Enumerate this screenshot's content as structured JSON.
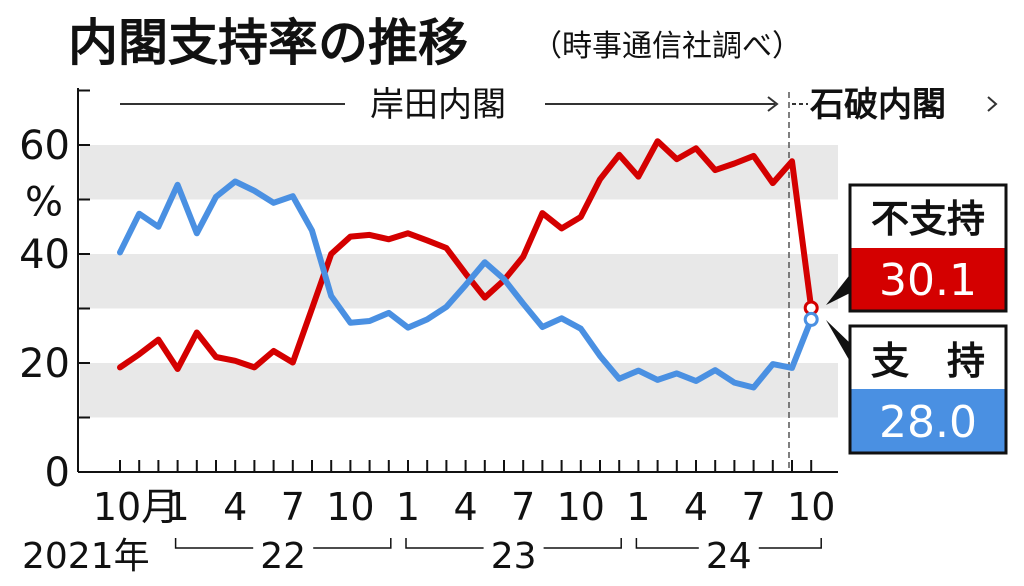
{
  "colors": {
    "disapprove": "#d40000",
    "approve": "#4a90e2",
    "band": "#e8e8e8"
  },
  "title": "内閣支持率の推移",
  "source": "（時事通信社調べ）",
  "eras": {
    "kishida": "岸田内閣",
    "ishiba": "石破内閣"
  },
  "callouts": {
    "disapprove_label": "不支持",
    "disapprove_value": "30.1",
    "approve_label": "支　持",
    "approve_value": "28.0"
  },
  "chart_data": {
    "type": "line",
    "title": "内閣支持率の推移",
    "ylabel": "%",
    "ylim": [
      0,
      70
    ],
    "yticks": [
      "0",
      "20",
      "40",
      "60"
    ],
    "percent_label": "%",
    "x_tick_labels": [
      "10月",
      "1",
      "4",
      "7",
      "10",
      "1",
      "4",
      "7",
      "10",
      "1",
      "4",
      "7",
      "10"
    ],
    "year_labels": [
      "2021年",
      "22",
      "23",
      "24"
    ],
    "x": [
      "2021-10",
      "2021-11",
      "2021-12",
      "2022-01",
      "2022-02",
      "2022-03",
      "2022-04",
      "2022-05",
      "2022-06",
      "2022-07",
      "2022-08",
      "2022-09",
      "2022-10",
      "2022-11",
      "2022-12",
      "2023-01",
      "2023-02",
      "2023-03",
      "2023-04",
      "2023-05",
      "2023-06",
      "2023-07",
      "2023-08",
      "2023-09",
      "2023-10",
      "2023-11",
      "2023-12",
      "2024-01",
      "2024-02",
      "2024-03",
      "2024-04",
      "2024-05",
      "2024-06",
      "2024-07",
      "2024-08",
      "2024-09",
      "2024-10"
    ],
    "series": [
      {
        "name": "不支持",
        "values": [
          19.2,
          21.6,
          24.3,
          18.9,
          25.6,
          21.1,
          20.4,
          19.2,
          22.2,
          20.1,
          30.0,
          40.0,
          43.2,
          43.5,
          42.7,
          43.8,
          42.5,
          41.1,
          36.4,
          32.0,
          35.2,
          39.5,
          47.5,
          44.7,
          46.8,
          53.7,
          58.2,
          54.2,
          60.7,
          57.4,
          59.4,
          55.4,
          56.6,
          58.0,
          53.0,
          57.0,
          30.1
        ]
      },
      {
        "name": "支持",
        "values": [
          40.3,
          47.4,
          45.0,
          52.7,
          43.8,
          50.5,
          53.3,
          51.6,
          49.4,
          50.6,
          44.3,
          32.3,
          27.4,
          27.7,
          29.2,
          26.5,
          28.0,
          30.3,
          34.3,
          38.5,
          35.4,
          30.9,
          26.6,
          28.2,
          26.3,
          21.3,
          17.1,
          18.6,
          16.9,
          18.1,
          16.7,
          18.7,
          16.4,
          15.5,
          19.8,
          19.1,
          28.0
        ]
      }
    ]
  }
}
